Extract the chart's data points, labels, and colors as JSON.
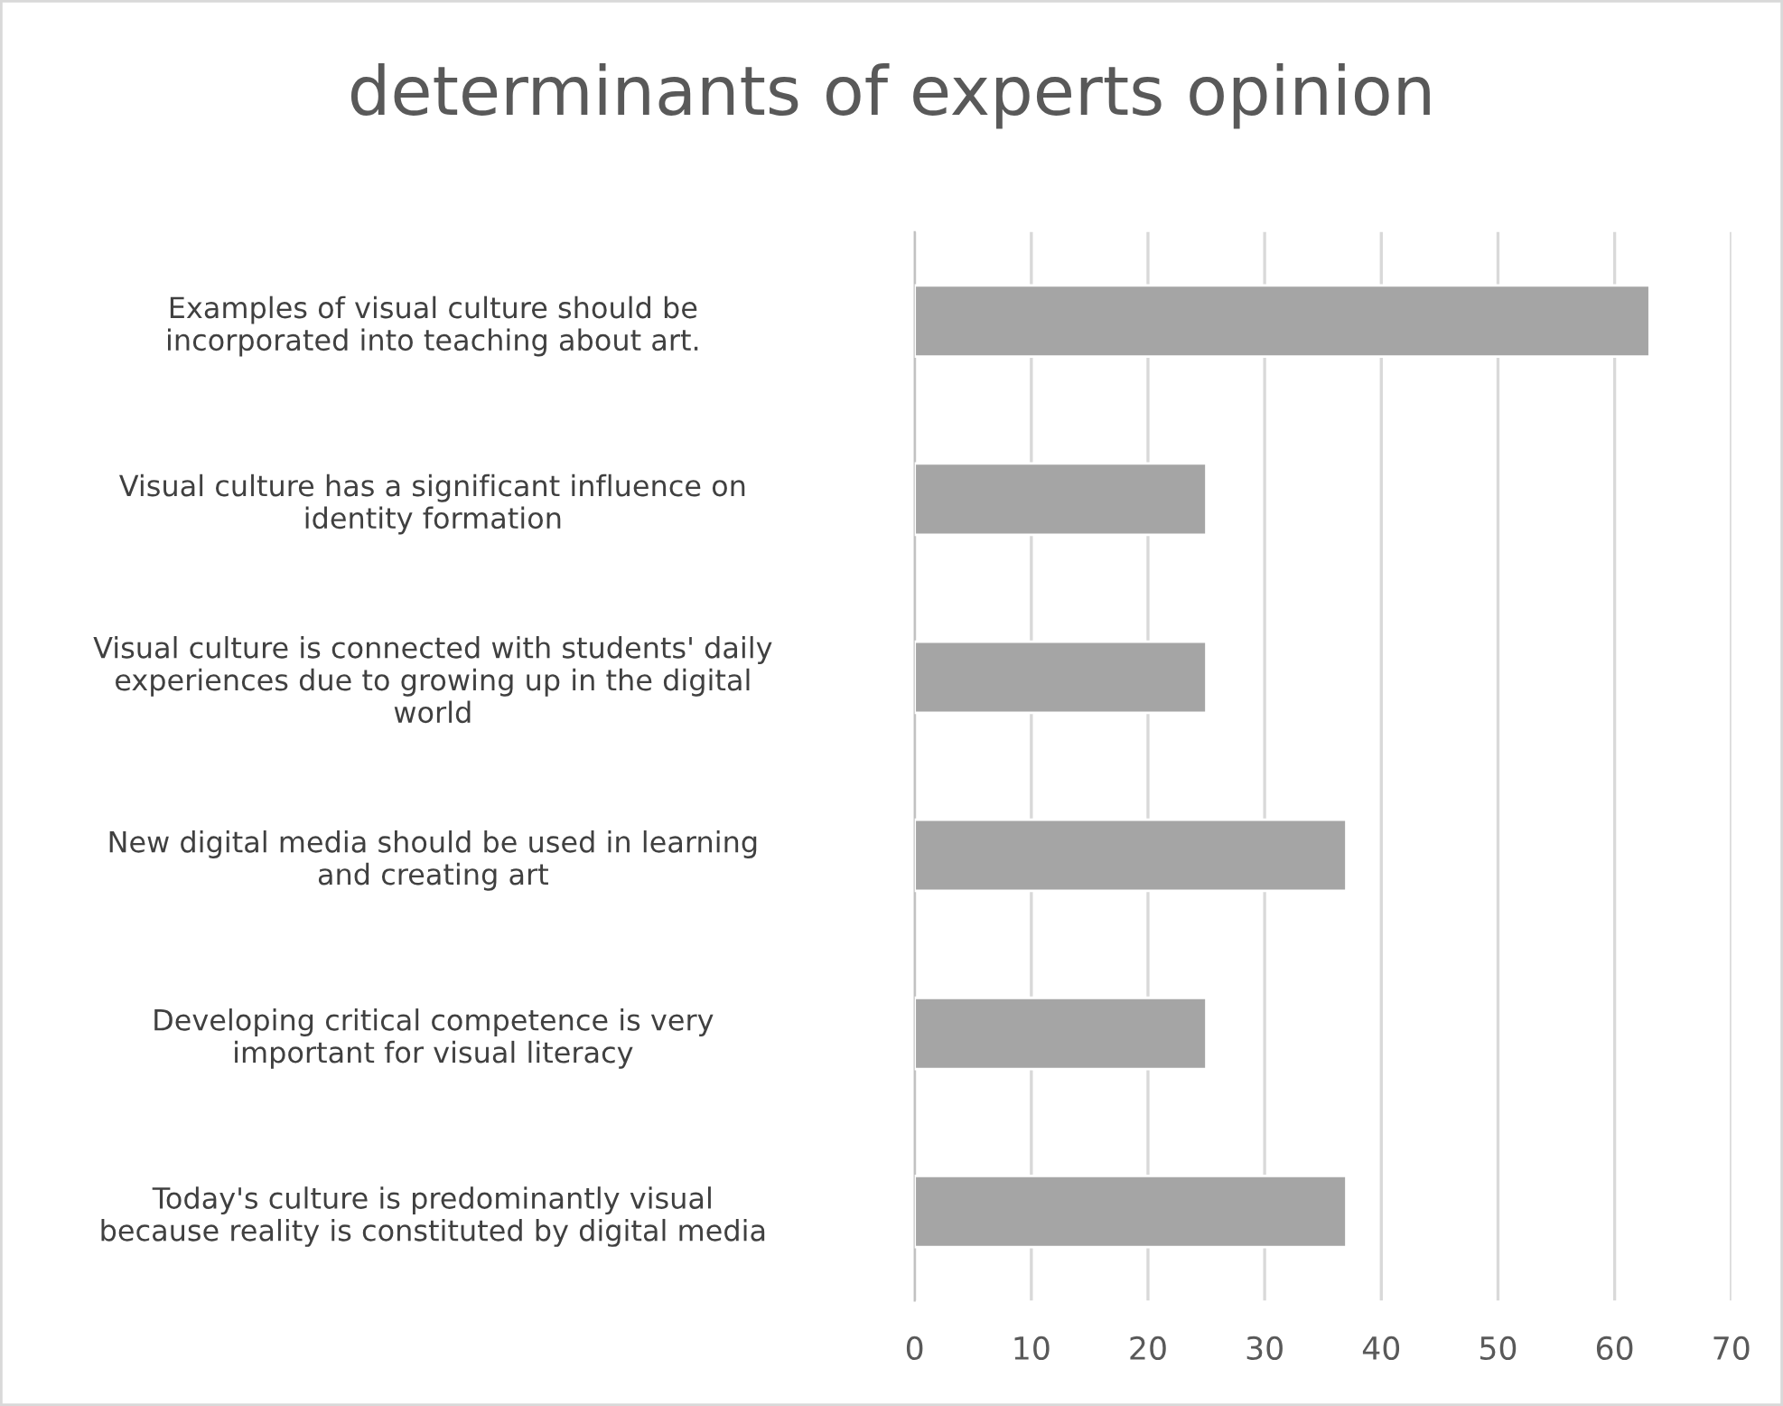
{
  "chart_data": {
    "type": "bar",
    "orientation": "horizontal",
    "title": "determinants of experts opinion",
    "categories": [
      "Examples of visual culture should be\nincorporated into teaching about art.",
      "Visual culture has a significant influence on\nidentity formation",
      "Visual culture is connected with students' daily\nexperiences due to growing up in the digital\nworld",
      "New digital media should be used in learning\nand creating art",
      "Developing critical competence is very\nimportant for visual literacy",
      "Today's culture is predominantly visual\nbecause reality is constituted by digital media"
    ],
    "values": [
      63,
      25,
      25,
      37,
      25,
      37
    ],
    "color": "#a5a5a5",
    "xlim": [
      0,
      70
    ],
    "xticks": [
      0,
      10,
      20,
      30,
      40,
      50,
      60,
      70
    ],
    "grid": "x",
    "legend": false
  }
}
